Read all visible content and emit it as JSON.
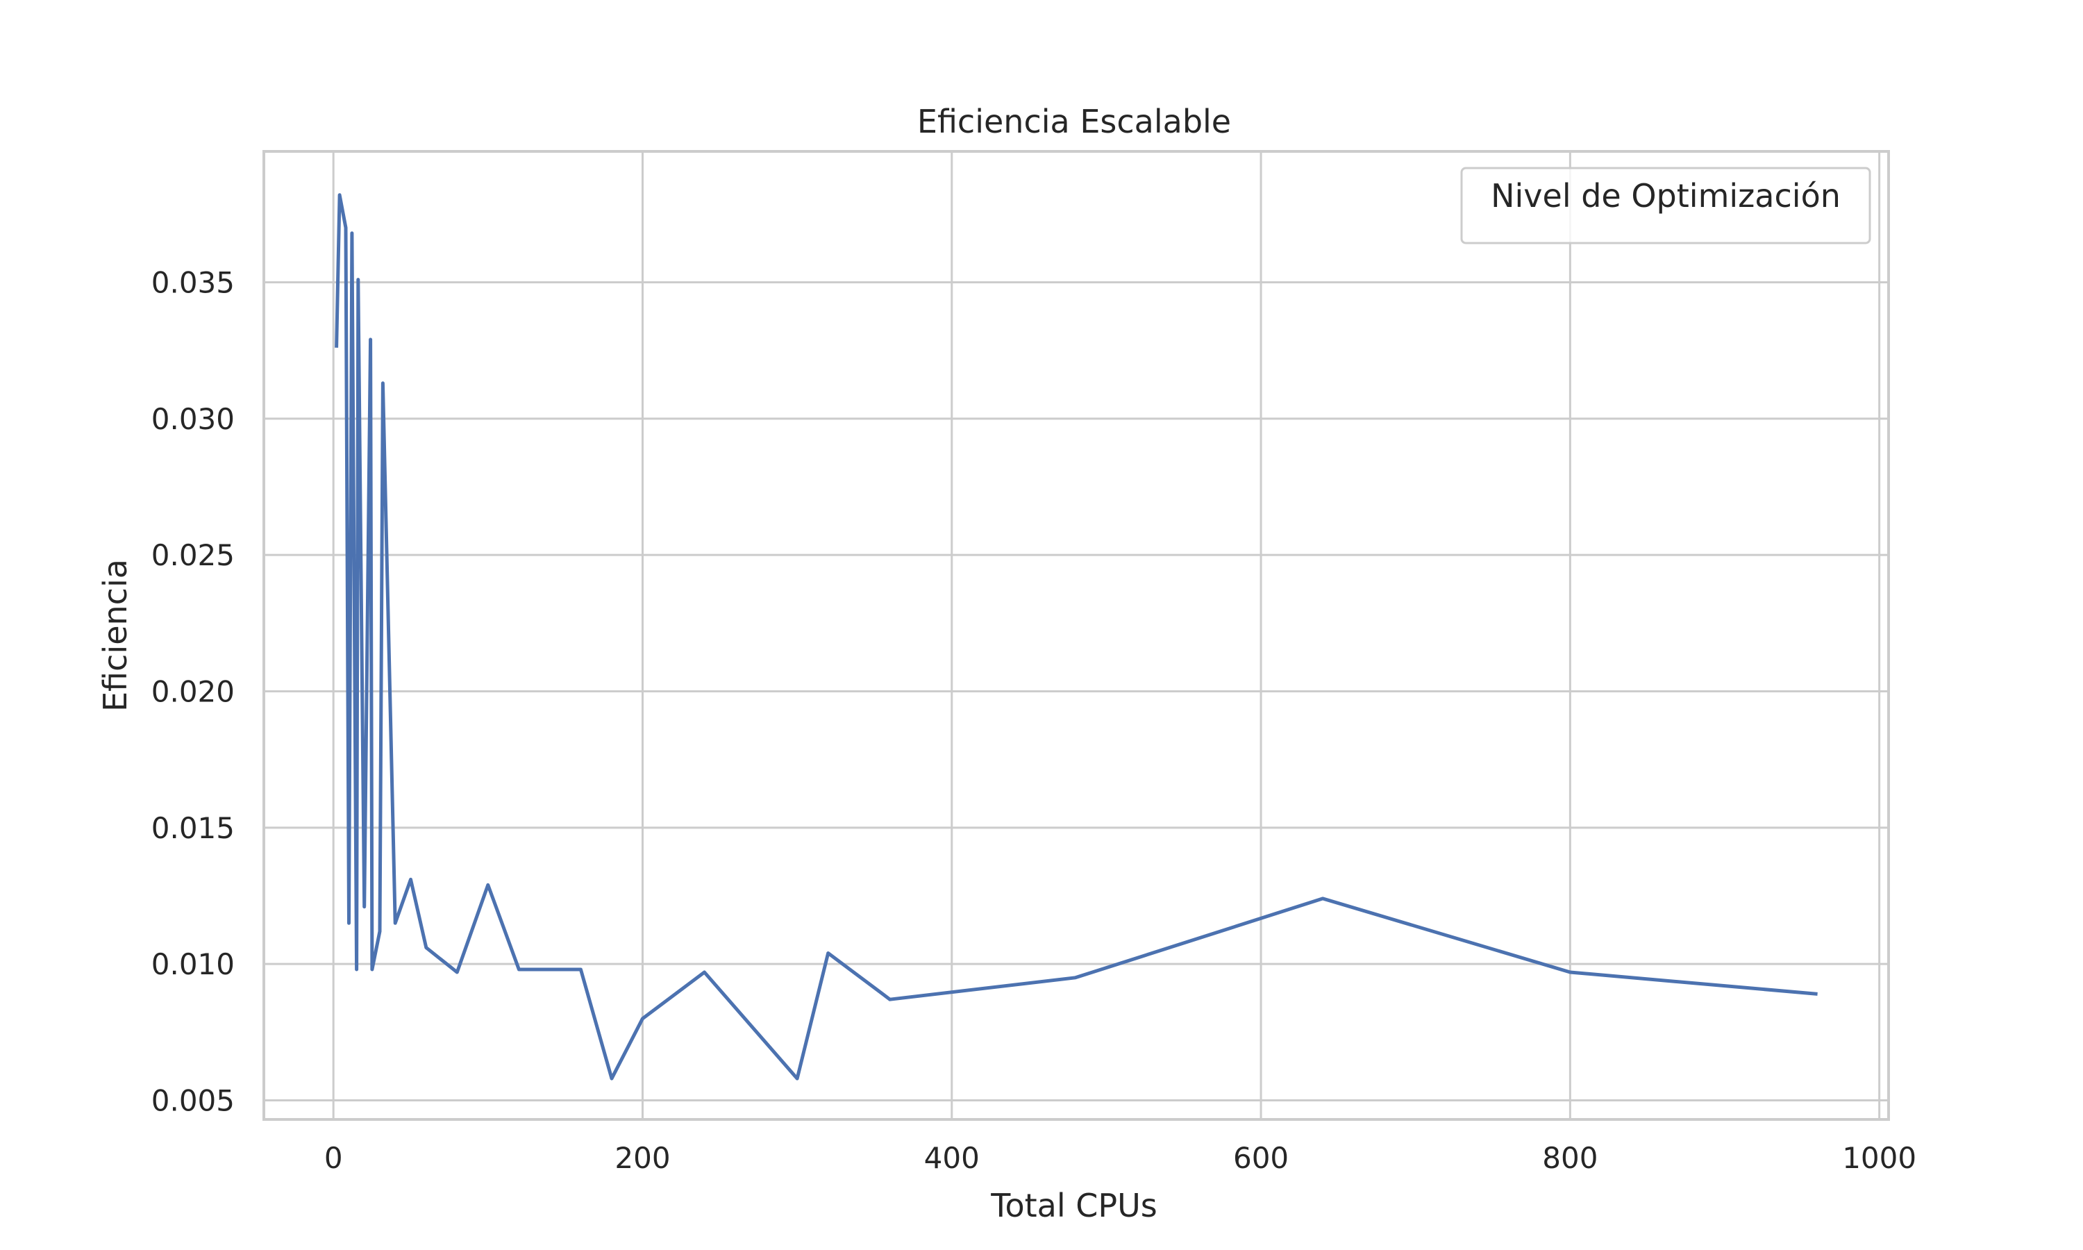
{
  "chart_data": {
    "type": "line",
    "title": "Eficiencia Escalable",
    "xlabel": "Total CPUs",
    "ylabel": "Eficiencia",
    "xlim": [
      -45,
      1006
    ],
    "ylim": [
      0.0043,
      0.0398
    ],
    "xticks": [
      0,
      200,
      400,
      600,
      800,
      1000
    ],
    "yticks": [
      0.005,
      0.01,
      0.015,
      0.02,
      0.025,
      0.03,
      0.035
    ],
    "xtick_labels": [
      "0",
      "200",
      "400",
      "600",
      "800",
      "1000"
    ],
    "ytick_labels": [
      "0.005",
      "0.010",
      "0.015",
      "0.020",
      "0.025",
      "0.030",
      "0.035"
    ],
    "grid": true,
    "legend": {
      "title": "Nivel de Optimización",
      "placement": "upper-right",
      "entries": []
    },
    "line_color": "#4c72b0",
    "series": [
      {
        "x": [
          2,
          4,
          8,
          10,
          12,
          15,
          16,
          20,
          24,
          25,
          30,
          32,
          40,
          50,
          60,
          80,
          100,
          120,
          160,
          180,
          200,
          240,
          300,
          320,
          360,
          480,
          640,
          800,
          960
        ],
        "y": [
          0.0326,
          0.0382,
          0.037,
          0.0115,
          0.0368,
          0.0098,
          0.0351,
          0.0121,
          0.0329,
          0.0098,
          0.0112,
          0.0313,
          0.0115,
          0.0131,
          0.0106,
          0.0097,
          0.0129,
          0.0098,
          0.0098,
          0.0058,
          0.008,
          0.0097,
          0.0058,
          0.0104,
          0.0087,
          0.0095,
          0.0124,
          0.0097,
          0.0089
        ]
      }
    ]
  }
}
